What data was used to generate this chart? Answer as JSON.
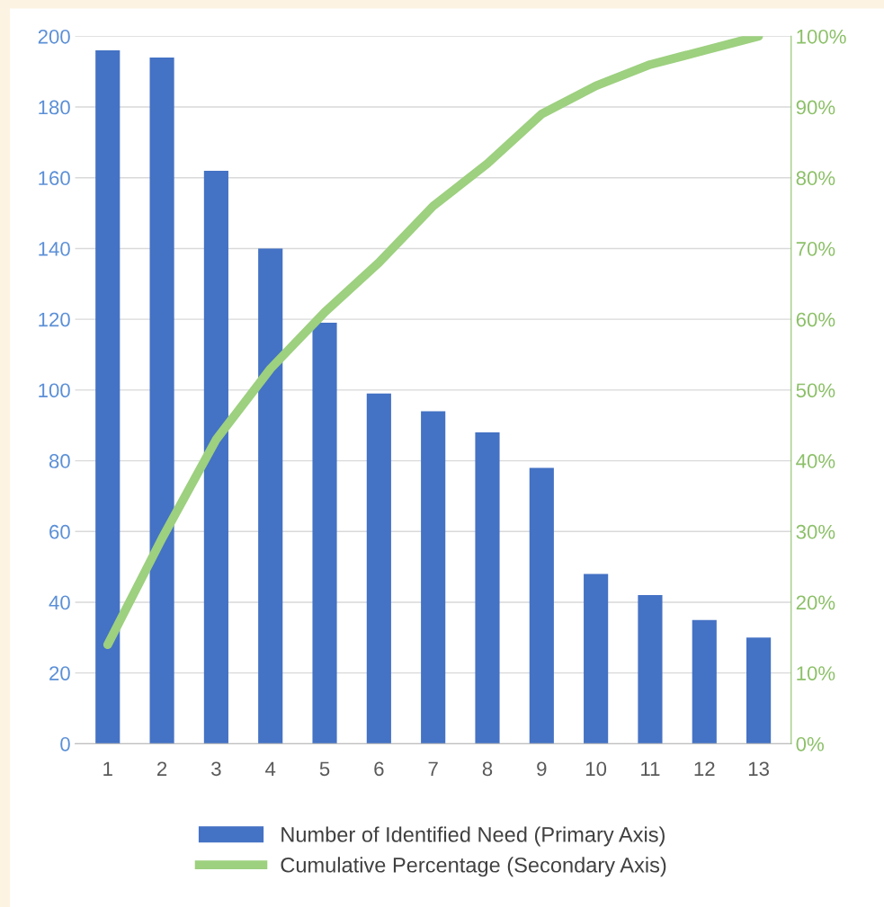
{
  "chart_data": {
    "type": "bar",
    "categories": [
      "1",
      "2",
      "3",
      "4",
      "5",
      "6",
      "7",
      "8",
      "9",
      "10",
      "11",
      "12",
      "13"
    ],
    "series": [
      {
        "name": "Number of Identified Need (Primary Axis)",
        "color": "#4472c4",
        "values": [
          196,
          194,
          162,
          140,
          119,
          99,
          94,
          88,
          78,
          48,
          42,
          35,
          30
        ]
      },
      {
        "name": "Cumulative Percentage (Secondary Axis)",
        "type": "line",
        "axis": "y2",
        "color": "#9dd07f",
        "values": [
          14,
          29,
          43,
          53,
          61,
          68,
          76,
          82,
          89,
          93,
          96,
          98,
          100
        ]
      }
    ],
    "ylim": [
      0,
      200
    ],
    "yticks": [
      0,
      20,
      40,
      60,
      80,
      100,
      120,
      140,
      160,
      180,
      200
    ],
    "y2lim": [
      0,
      100
    ],
    "y2ticks": [
      {
        "value": 0,
        "label": "0%"
      },
      {
        "value": 10,
        "label": "10%"
      },
      {
        "value": 20,
        "label": "20%"
      },
      {
        "value": 30,
        "label": "30%"
      },
      {
        "value": 40,
        "label": "40%"
      },
      {
        "value": 50,
        "label": "50%"
      },
      {
        "value": 60,
        "label": "60%"
      },
      {
        "value": 70,
        "label": "70%"
      },
      {
        "value": 80,
        "label": "80%"
      },
      {
        "value": 90,
        "label": "90%"
      },
      {
        "value": 100,
        "label": "100%"
      }
    ],
    "grid": "y",
    "legend": "bottom",
    "marker": "none",
    "line_style": "solid"
  }
}
